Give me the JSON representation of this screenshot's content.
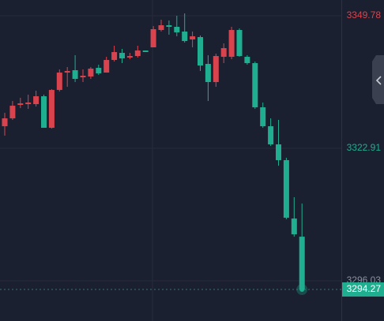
{
  "chart_data": {
    "type": "candlestick",
    "categories": [
      null,
      null,
      null,
      null,
      null,
      null,
      null,
      null,
      null,
      null,
      null,
      null,
      null,
      null,
      null,
      null,
      null,
      null,
      null,
      null,
      null,
      null,
      null,
      null,
      null,
      null,
      null,
      null,
      null,
      null,
      null,
      null,
      null,
      null,
      null,
      null,
      null,
      null,
      null
    ],
    "open": [
      3327.38,
      3328.98,
      3331.7,
      3331.86,
      3331.86,
      3333.46,
      3327.06,
      3334.74,
      3338.26,
      3338.74,
      3337.3,
      3337.46,
      3339.22,
      3338.26,
      3340.82,
      3342.26,
      3341.3,
      3341.62,
      3342.74,
      3343.38,
      3346.9,
      3347.86,
      3347.54,
      3346.58,
      3344.98,
      3345.46,
      3340.02,
      3336.34,
      3341.46,
      3341.46,
      3346.9,
      3341.46,
      3340.18,
      3331.22,
      3327.38,
      3323.7,
      3320.5,
      3308.66,
      3304.98
    ],
    "high": [
      3330.1,
      3332.5,
      3333.14,
      3333.78,
      3334.58,
      3333.78,
      3334.9,
      3338.9,
      3339.38,
      3341.78,
      3338.9,
      3339.38,
      3339.86,
      3341.46,
      3343.7,
      3343.06,
      3342.26,
      3343.7,
      3342.74,
      3347.7,
      3348.98,
      3348.82,
      3349.78,
      3350.26,
      3346.58,
      3345.78,
      3341.78,
      3342.1,
      3344.18,
      3347.54,
      3347.22,
      3341.78,
      3340.5,
      3332.18,
      3328.98,
      3328.66,
      3320.98,
      3312.98,
      3311.7
    ],
    "low": [
      3325.46,
      3328.66,
      3331.06,
      3330.9,
      3331.38,
      3327.06,
      3326.9,
      3334.42,
      3335.38,
      3336.34,
      3336.34,
      3336.98,
      3337.78,
      3338.26,
      3340.5,
      3340.18,
      3340.98,
      3341.3,
      3342.42,
      3343.38,
      3346.58,
      3345.94,
      3345.62,
      3344.34,
      3343.38,
      3338.58,
      3332.5,
      3335.38,
      3340.18,
      3340.98,
      3341.46,
      3339.86,
      3330.9,
      3327.06,
      3323.38,
      3319.38,
      3308.5,
      3304.98,
      3294.27
    ],
    "close": [
      3328.98,
      3331.54,
      3332.02,
      3332.18,
      3333.46,
      3327.06,
      3334.74,
      3338.26,
      3338.58,
      3336.98,
      3337.62,
      3339.06,
      3338.1,
      3340.82,
      3342.42,
      3341.14,
      3341.62,
      3342.74,
      3342.42,
      3347.06,
      3347.86,
      3347.54,
      3346.42,
      3344.66,
      3345.62,
      3339.7,
      3336.34,
      3341.62,
      3343.22,
      3346.9,
      3341.62,
      3340.18,
      3331.22,
      3327.38,
      3323.7,
      3320.5,
      3308.82,
      3305.46,
      3294.27
    ],
    "up_color": "#d8434e",
    "down_color": "#1fae8f",
    "ylim": [
      3287.88,
      3352.98
    ],
    "yticks": [
      3349.78,
      3322.91,
      3296.03
    ],
    "ytick_colors": [
      "#d8434e",
      "#1fae8f",
      "#8a8f9c"
    ],
    "last_price": 3294.27,
    "grid": true
  }
}
